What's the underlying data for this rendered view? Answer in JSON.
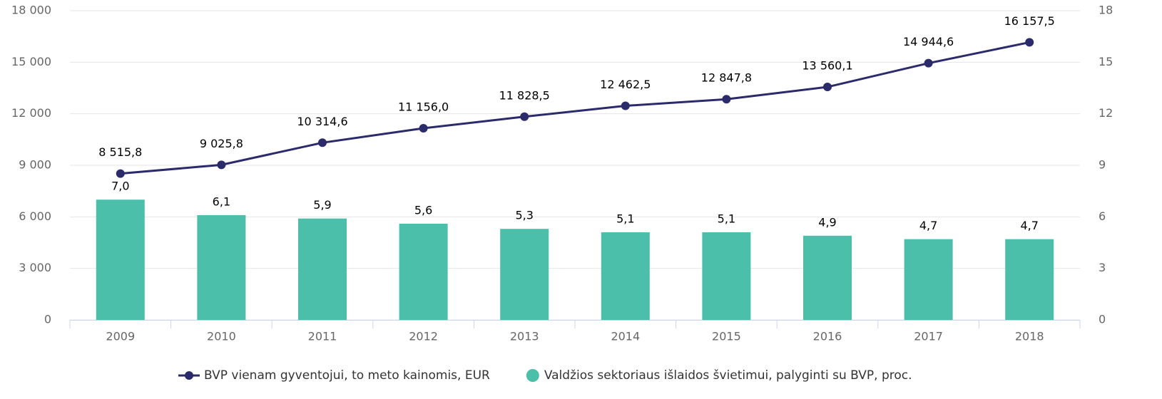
{
  "chart_data": {
    "type": "bar",
    "categories": [
      "2009",
      "2010",
      "2011",
      "2012",
      "2013",
      "2014",
      "2015",
      "2016",
      "2017",
      "2018"
    ],
    "series": [
      {
        "name": "BVP vienam gyventojui, to meto kainomis, EUR",
        "type": "line",
        "color": "#2b2a6b",
        "values": [
          8515.8,
          9025.8,
          10314.6,
          11156.0,
          11828.5,
          12462.5,
          12847.8,
          13560.1,
          14944.6,
          16157.5
        ],
        "value_labels": [
          "8 515,8",
          "9 025,8",
          "10 314,6",
          "11 156,0",
          "11 828,5",
          "12 462,5",
          "12 847,8",
          "13 560,1",
          "14 944,6",
          "16 157,5"
        ]
      },
      {
        "name": "Valdžios sektoriaus išlaidos švietimui, palyginti su BVP, proc.",
        "type": "bar",
        "axis": "y2",
        "color": "#4bbfa9",
        "values": [
          7.0,
          6.1,
          5.9,
          5.6,
          5.3,
          5.1,
          5.1,
          4.9,
          4.7,
          4.7
        ],
        "value_labels": [
          "7,0",
          "6,1",
          "5,9",
          "5,6",
          "5,3",
          "5,1",
          "5,1",
          "4,9",
          "4,7",
          "4,7"
        ]
      }
    ],
    "ylim": [
      0,
      18000
    ],
    "yticks": [
      0,
      {
        "value": 3000,
        "label": "3 000"
      },
      {
        "value": 6000,
        "label": "6 000"
      },
      {
        "value": 9000,
        "label": "9 000"
      },
      {
        "value": 12000,
        "label": "12 000"
      },
      {
        "value": 15000,
        "label": "15 000"
      },
      {
        "value": 18000,
        "label": "18 000"
      }
    ],
    "y2lim": [
      0,
      18
    ],
    "y2ticks": [
      0,
      3,
      6,
      9,
      12,
      15,
      18
    ],
    "grid": true,
    "legend": "bottom"
  }
}
